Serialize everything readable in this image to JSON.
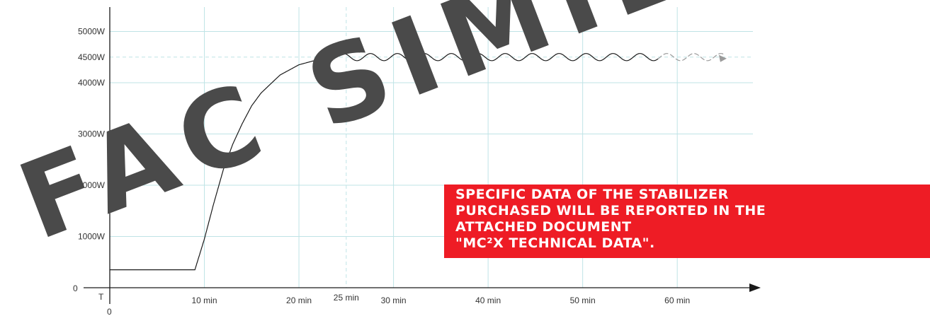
{
  "chart_data": {
    "type": "line",
    "title": "",
    "xlabel": "T",
    "ylabel": "",
    "origin_label": "0",
    "x_axis_zero_label": "0",
    "xlim": [
      0,
      68
    ],
    "ylim": [
      0,
      5500
    ],
    "x_ticks": [
      {
        "value": 10,
        "label": "10 min",
        "emphasis": false
      },
      {
        "value": 20,
        "label": "20 min",
        "emphasis": false
      },
      {
        "value": 25,
        "label": "25 min",
        "emphasis": true
      },
      {
        "value": 30,
        "label": "30 min",
        "emphasis": false
      },
      {
        "value": 40,
        "label": "40 min",
        "emphasis": false
      },
      {
        "value": 50,
        "label": "50 min",
        "emphasis": false
      },
      {
        "value": 60,
        "label": "60 min",
        "emphasis": false
      }
    ],
    "y_ticks": [
      {
        "value": 1000,
        "label": "1000W"
      },
      {
        "value": 2000,
        "label": "2000W"
      },
      {
        "value": 3000,
        "label": "3000W"
      },
      {
        "value": 4000,
        "label": "4000W"
      },
      {
        "value": 4500,
        "label": "4500W"
      },
      {
        "value": 5000,
        "label": "5000W"
      }
    ],
    "reference_lines": {
      "y": 4500,
      "x": 25,
      "style": "dashed"
    },
    "series": [
      {
        "x": [
          0,
          9,
          10,
          11,
          12,
          13,
          14,
          15,
          16,
          18,
          20,
          22,
          24,
          25,
          30,
          35,
          40,
          45,
          50,
          55,
          60,
          65
        ],
        "y": [
          350,
          350,
          950,
          1650,
          2300,
          2800,
          3200,
          3550,
          3800,
          4150,
          4350,
          4450,
          4500,
          4500,
          4500,
          4500,
          4500,
          4500,
          4500,
          4500,
          4500,
          4500
        ],
        "oscillation_amplitude": 70,
        "fades_after": 58,
        "arrow_end": true
      }
    ],
    "grid": true,
    "colors": {
      "grid": "#bfe3e6",
      "axis": "#1a1a1a",
      "line": "#1a1a1a",
      "fade": "#9a9a9a"
    }
  },
  "note": {
    "lines": [
      "SPECIFIC DATA OF THE STABILIZER",
      "PURCHASED WILL BE REPORTED IN THE",
      "ATTACHED DOCUMENT",
      "\"MC²X TECHNICAL DATA\"."
    ],
    "background": "#ee1c25"
  },
  "watermark": {
    "text": "FAC SIMILE"
  }
}
